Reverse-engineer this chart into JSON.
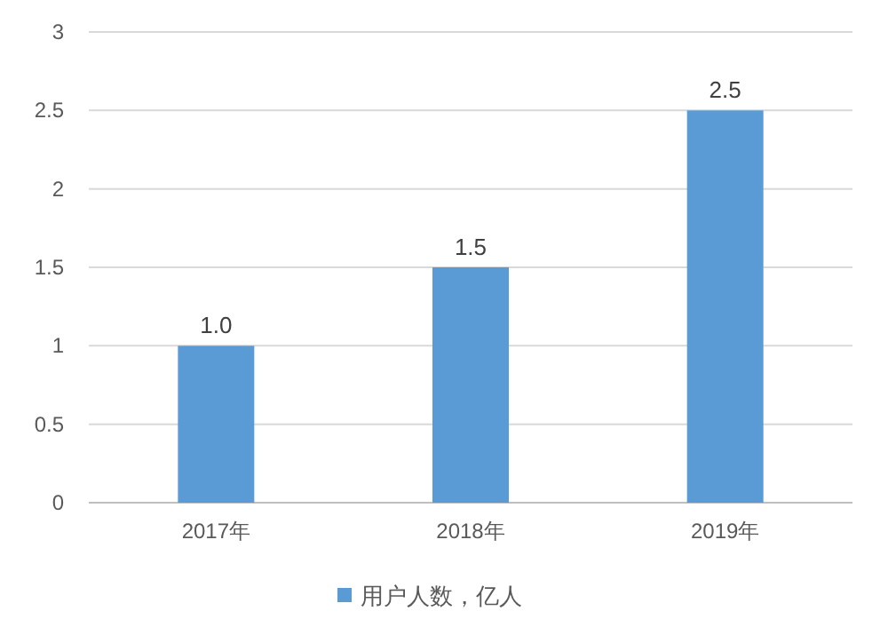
{
  "chart_data": {
    "type": "bar",
    "categories": [
      "2017年",
      "2018年",
      "2019年"
    ],
    "series": [
      {
        "name": "用户人数，亿人",
        "color": "#5b9bd5",
        "values": [
          1.0,
          1.5,
          2.5
        ]
      }
    ],
    "value_labels": [
      "1.0",
      "1.5",
      "2.5"
    ],
    "ylim": [
      0,
      3
    ],
    "yticks": [
      0,
      0.5,
      1,
      1.5,
      2,
      2.5,
      3
    ],
    "grid": "y",
    "legend": "bottom"
  }
}
